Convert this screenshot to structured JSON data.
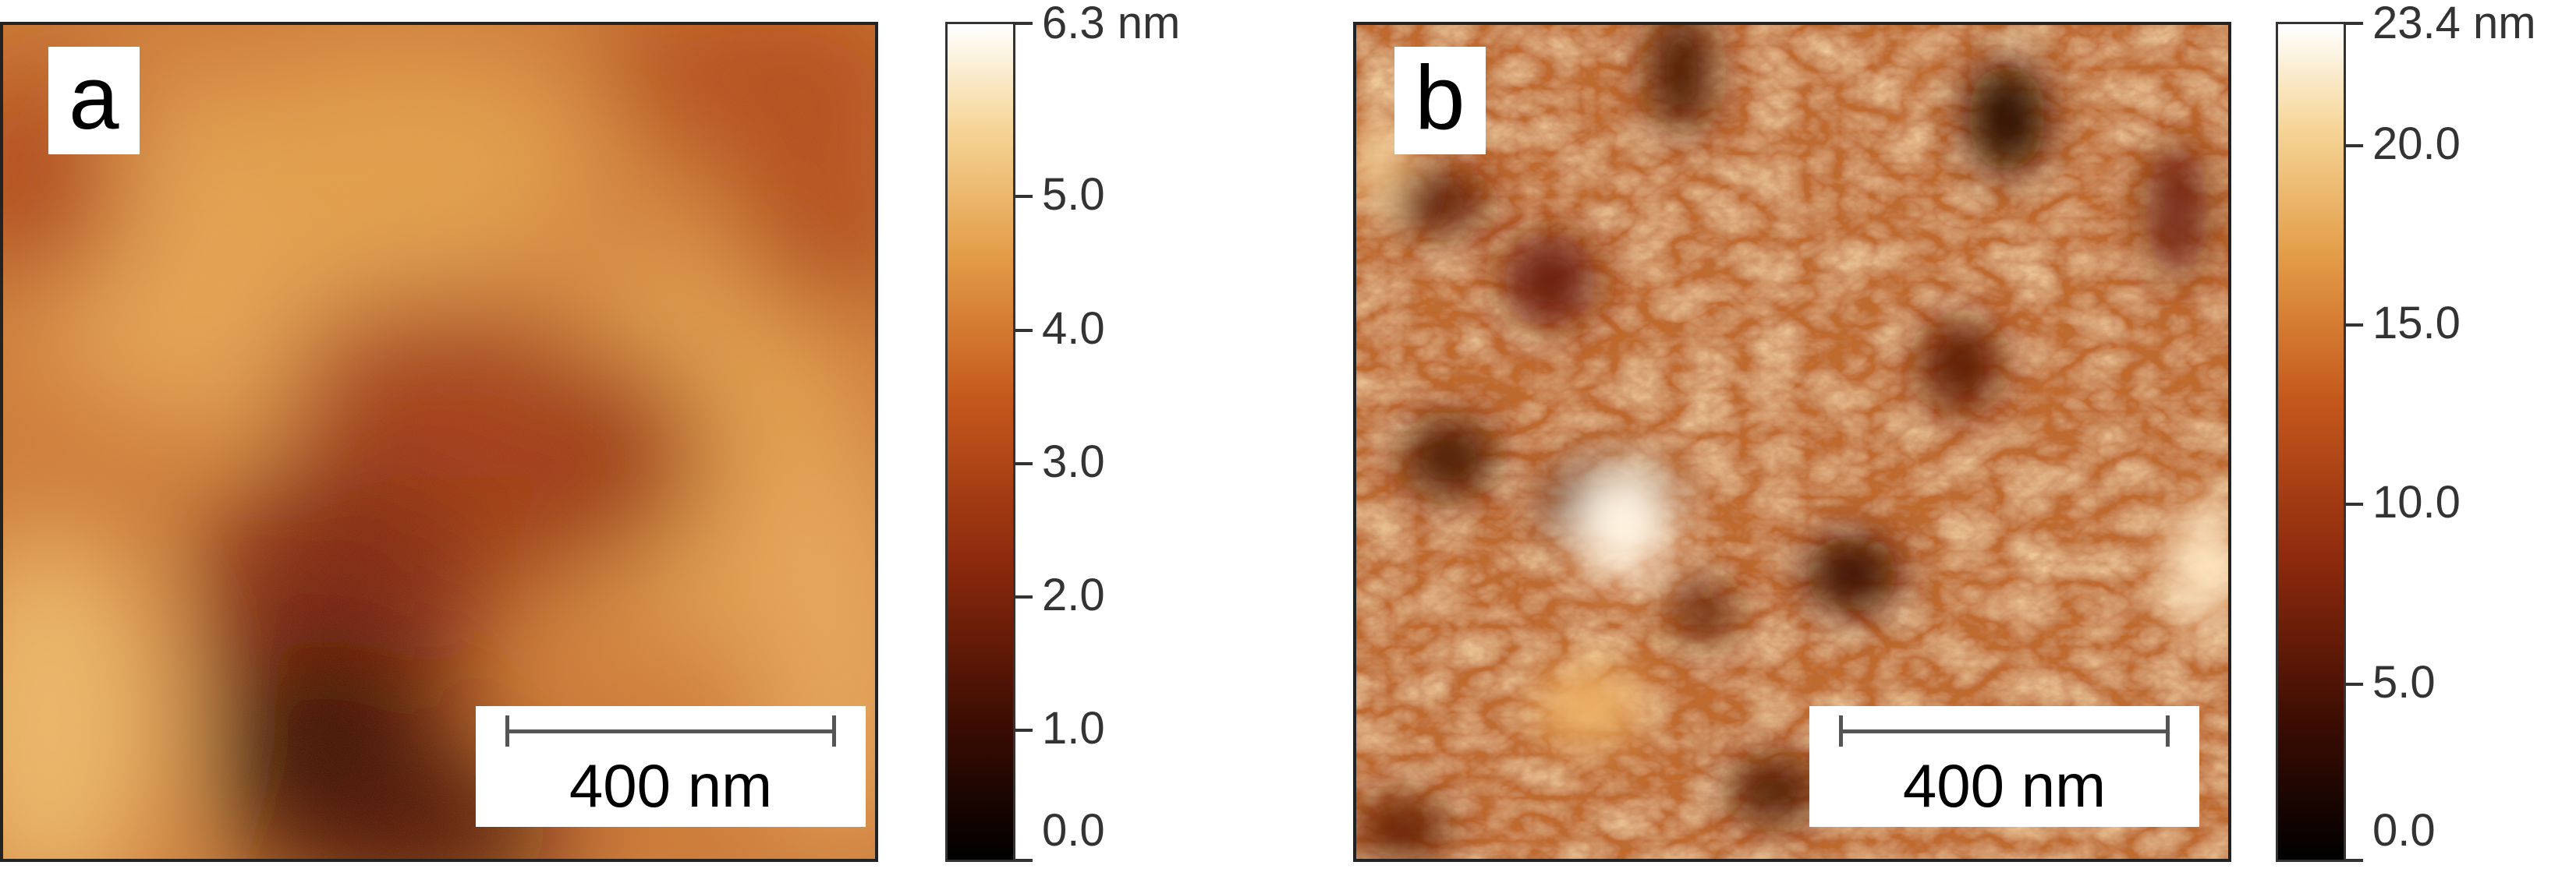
{
  "colors": {
    "colormap": [
      "#000000",
      "#3a0c02",
      "#8e2a0d",
      "#c4581c",
      "#e39b46",
      "#f6d79a",
      "#ffffff"
    ],
    "border": "#222222"
  },
  "panels": [
    {
      "label": "a",
      "scalebar_text": "400 nm",
      "colorbar": {
        "max_label": "6.3 nm",
        "min": 0,
        "max": 6.3,
        "ticks": [
          "0.0",
          "1.0",
          "2.0",
          "3.0",
          "4.0",
          "5.0"
        ],
        "tick_values": [
          0,
          1,
          2,
          3,
          4,
          5
        ]
      },
      "image_description_tag": "afm-topography-smooth"
    },
    {
      "label": "b",
      "scalebar_text": "400 nm",
      "colorbar": {
        "max_label": "23.4 nm",
        "min": 0,
        "max": 23.4,
        "ticks": [
          "0.0",
          "5.0",
          "10.0",
          "15.0",
          "20.0"
        ],
        "tick_values": [
          0,
          5,
          10,
          15,
          20
        ]
      },
      "image_description_tag": "afm-topography-grainy"
    }
  ]
}
